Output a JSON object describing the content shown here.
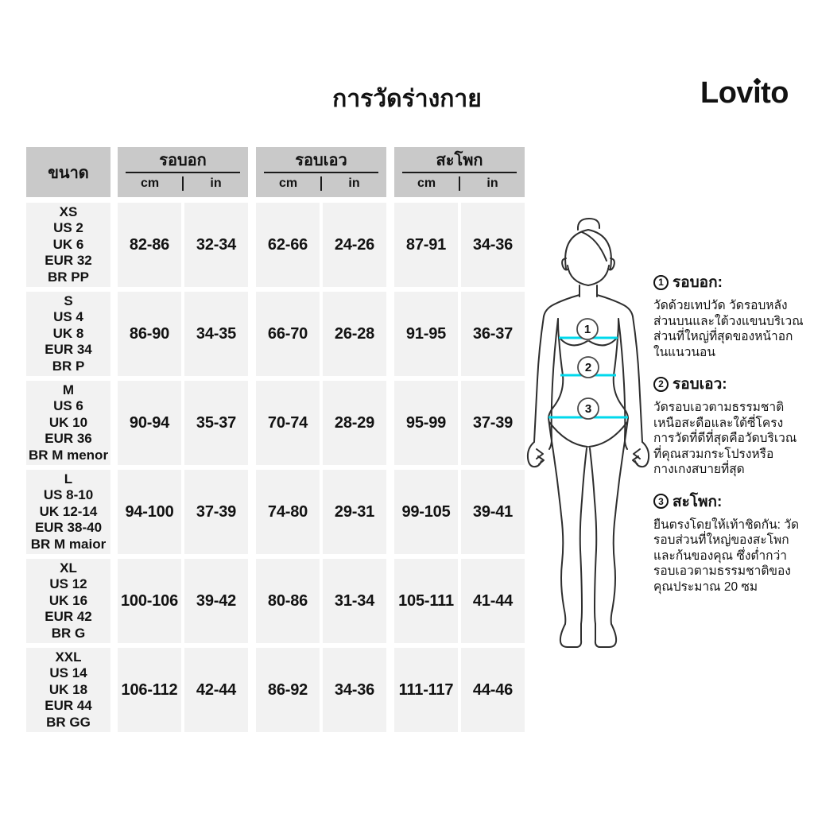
{
  "title": "การวัดร่างกาย",
  "brand": "Lovito",
  "table": {
    "size_header": "ขนาด",
    "groups": [
      {
        "label": "รอบอก",
        "units": [
          "cm",
          "in"
        ]
      },
      {
        "label": "รอบเอว",
        "units": [
          "cm",
          "in"
        ]
      },
      {
        "label": "สะโพก",
        "units": [
          "cm",
          "in"
        ]
      }
    ],
    "rows": [
      {
        "size": [
          "XS",
          "US 2",
          "UK 6",
          "EUR 32",
          "BR PP"
        ],
        "values": [
          "82-86",
          "32-34",
          "62-66",
          "24-26",
          "87-91",
          "34-36"
        ]
      },
      {
        "size": [
          "S",
          "US 4",
          "UK 8",
          "EUR 34",
          "BR P"
        ],
        "values": [
          "86-90",
          "34-35",
          "66-70",
          "26-28",
          "91-95",
          "36-37"
        ]
      },
      {
        "size": [
          "M",
          "US 6",
          "UK 10",
          "EUR 36",
          "BR M menor"
        ],
        "values": [
          "90-94",
          "35-37",
          "70-74",
          "28-29",
          "95-99",
          "37-39"
        ]
      },
      {
        "size": [
          "L",
          "US 8-10",
          "UK 12-14",
          "EUR 38-40",
          "BR M maior"
        ],
        "values": [
          "94-100",
          "37-39",
          "74-80",
          "29-31",
          "99-105",
          "39-41"
        ]
      },
      {
        "size": [
          "XL",
          "US 12",
          "UK 16",
          "EUR 42",
          "BR G"
        ],
        "values": [
          "100-106",
          "39-42",
          "80-86",
          "31-34",
          "105-111",
          "41-44"
        ]
      },
      {
        "size": [
          "XXL",
          "US 14",
          "UK 18",
          "EUR 44",
          "BR GG"
        ],
        "values": [
          "106-112",
          "42-44",
          "86-92",
          "34-36",
          "111-117",
          "44-46"
        ]
      }
    ]
  },
  "figure": {
    "markers": [
      "1",
      "2",
      "3"
    ]
  },
  "instructions": [
    {
      "num": "1",
      "title": "รอบอก:",
      "body": "วัดด้วยเทปวัด วัดรอบหลัง\nส่วนบนและใต้วงแขนบริเวณ\nส่วนที่ใหญ่ที่สุดของหน้าอก\nในแนวนอน"
    },
    {
      "num": "2",
      "title": "รอบเอว:",
      "body": "วัดรอบเอวตามธรรมชาติ\nเหนือสะดือและใต้ซี่โครง\nการวัดที่ดีที่สุดคือวัดบริเวณ\nที่คุณสวมกระโปรงหรือ\nกางเกงสบายที่สุด"
    },
    {
      "num": "3",
      "title": "สะโพก:",
      "body": "ยืนตรงโดยให้เท้าชิดกัน: วัด\nรอบส่วนที่ใหญ่ของสะโพก\nและก้นของคุณ ซึ่งต่ำกว่า\nรอบเอวตามธรรมชาติของ\nคุณประมาณ 20 ซม"
    }
  ],
  "colors": {
    "header_bg": "#c9c9c9",
    "cell_bg": "#f2f2f2",
    "accent": "#00d9ec",
    "text": "#121212"
  }
}
